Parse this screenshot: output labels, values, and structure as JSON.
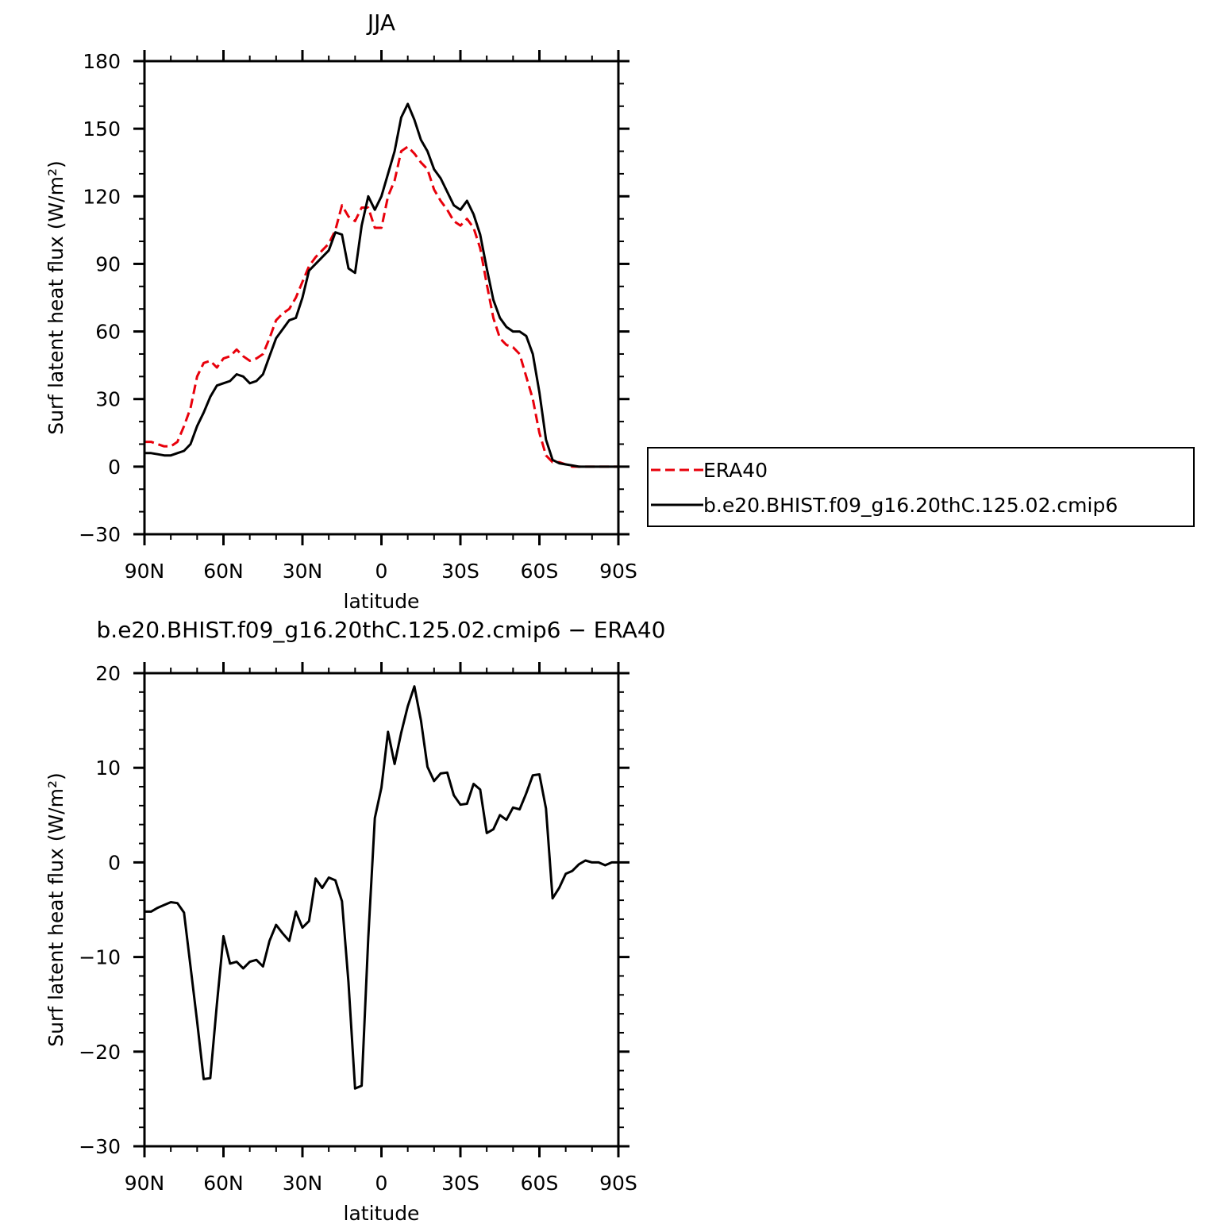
{
  "chart_data": [
    {
      "type": "line",
      "title": "JJA",
      "xlabel": "latitude",
      "ylabel": "Surf latent heat flux (W/m²)",
      "xlim": [
        -90,
        90
      ],
      "ylim": [
        -30,
        180
      ],
      "x_ticks": [
        -90,
        -60,
        -30,
        0,
        30,
        60,
        90
      ],
      "x_tick_labels": [
        "90N",
        "60N",
        "30N",
        "0",
        "30S",
        "60S",
        "90S"
      ],
      "y_ticks": [
        -30,
        0,
        30,
        60,
        90,
        120,
        150,
        180
      ],
      "y_tick_labels": [
        "−30",
        "0",
        "30",
        "60",
        "90",
        "120",
        "150",
        "180"
      ],
      "legend_position": "right",
      "series": [
        {
          "name": "ERA40",
          "color": "#e8000b",
          "dash": "dashed",
          "x": [
            -90,
            -87.5,
            -85,
            -82.5,
            -80,
            -77.5,
            -75,
            -72.5,
            -70,
            -67.5,
            -65,
            -62.5,
            -60,
            -57.5,
            -55,
            -52.5,
            -50,
            -47.5,
            -45,
            -42.5,
            -40,
            -37.5,
            -35,
            -32.5,
            -30,
            -27.5,
            -25,
            -22.5,
            -20,
            -17.5,
            -15,
            -12.5,
            -10,
            -7.5,
            -5,
            -2.5,
            0,
            2.5,
            5,
            7.5,
            10,
            12.5,
            15,
            17.5,
            20,
            22.5,
            25,
            27.5,
            30,
            32.5,
            35,
            37.5,
            40,
            42.5,
            45,
            47.5,
            50,
            52.5,
            55,
            57.5,
            60,
            62.5,
            65,
            67.5,
            70,
            72.5,
            75,
            77.5,
            80,
            82.5,
            85,
            87.5,
            90
          ],
          "values": [
            11,
            11,
            10,
            9,
            9,
            11,
            18,
            26,
            40,
            46,
            47,
            44,
            48,
            49,
            52,
            49,
            47,
            48,
            50,
            57,
            65,
            68,
            70,
            75,
            82,
            89,
            93,
            96,
            99,
            105,
            116,
            111,
            109,
            115,
            115,
            106,
            106,
            120,
            127,
            140,
            142,
            139,
            135,
            132,
            123,
            118,
            114,
            109,
            107,
            110,
            106,
            97,
            81,
            66,
            57,
            54,
            53,
            50,
            40,
            30,
            15,
            5,
            2,
            2,
            1,
            0,
            0,
            0,
            0,
            0,
            0,
            0,
            0
          ]
        },
        {
          "name": "b.e20.BHIST.f09_g16.20thC.125.02.cmip6",
          "color": "#000000",
          "dash": "solid",
          "x": [
            -90,
            -87.5,
            -85,
            -82.5,
            -80,
            -77.5,
            -75,
            -72.5,
            -70,
            -67.5,
            -65,
            -62.5,
            -60,
            -57.5,
            -55,
            -52.5,
            -50,
            -47.5,
            -45,
            -42.5,
            -40,
            -37.5,
            -35,
            -32.5,
            -30,
            -27.5,
            -25,
            -22.5,
            -20,
            -17.5,
            -15,
            -12.5,
            -10,
            -7.5,
            -5,
            -2.5,
            0,
            2.5,
            5,
            7.5,
            10,
            12.5,
            15,
            17.5,
            20,
            22.5,
            25,
            27.5,
            30,
            32.5,
            35,
            37.5,
            40,
            42.5,
            45,
            47.5,
            50,
            52.5,
            55,
            57.5,
            60,
            62.5,
            65,
            67.5,
            70,
            72.5,
            75,
            77.5,
            80,
            82.5,
            85,
            87.5,
            90
          ],
          "values": [
            6,
            6,
            5.5,
            5,
            5,
            6,
            7,
            10,
            18,
            24,
            31,
            36,
            37,
            38,
            41,
            40,
            37,
            38,
            41,
            49,
            57,
            61,
            65,
            66,
            75,
            87,
            90,
            93,
            96,
            104,
            103,
            88,
            86,
            107,
            120,
            114,
            120,
            130,
            140,
            155,
            161,
            154,
            145,
            140,
            132,
            128,
            122,
            116,
            114,
            118,
            112,
            103,
            88,
            74,
            66,
            62,
            60,
            60,
            58,
            50,
            33,
            12,
            3,
            1.5,
            1,
            0.5,
            0,
            0,
            0,
            0,
            0,
            0,
            0
          ]
        }
      ]
    },
    {
      "type": "line",
      "title": "b.e20.BHIST.f09_g16.20thC.125.02.cmip6 − ERA40",
      "xlabel": "latitude",
      "ylabel": "Surf latent heat flux (W/m²)",
      "xlim": [
        -90,
        90
      ],
      "ylim": [
        -30,
        20
      ],
      "x_ticks": [
        -90,
        -60,
        -30,
        0,
        30,
        60,
        90
      ],
      "x_tick_labels": [
        "90N",
        "60N",
        "30N",
        "0",
        "30S",
        "60S",
        "90S"
      ],
      "y_ticks": [
        -30,
        -20,
        -10,
        0,
        10,
        20
      ],
      "y_tick_labels": [
        "−30",
        "−20",
        "−10",
        "0",
        "10",
        "20"
      ],
      "series": [
        {
          "color": "#000000",
          "dash": "solid",
          "x": [
            -90,
            -87.5,
            -85,
            -82.5,
            -80,
            -77.5,
            -75,
            -72.5,
            -70,
            -67.5,
            -65,
            -62.5,
            -60,
            -57.5,
            -55,
            -52.5,
            -50,
            -47.5,
            -45,
            -42.5,
            -40,
            -37.5,
            -35,
            -32.5,
            -30,
            -27.5,
            -25,
            -22.5,
            -20,
            -17.5,
            -15,
            -12.5,
            -10,
            -7.5,
            -5,
            -2.5,
            0,
            2.5,
            5,
            7.5,
            10,
            12.5,
            15,
            17.5,
            20,
            22.5,
            25,
            27.5,
            30,
            32.5,
            35,
            37.5,
            40,
            42.5,
            45,
            47.5,
            50,
            52.5,
            55,
            57.5,
            60,
            62.5,
            65,
            67.5,
            70,
            72.5,
            75,
            77.5,
            80,
            82.5,
            85,
            87.5,
            90
          ],
          "values": [
            -5.2,
            -5.2,
            -4.8,
            -4.5,
            -4.2,
            -4.3,
            -5.3,
            -11,
            -16.8,
            -22.9,
            -22.8,
            -15,
            -7.8,
            -10.7,
            -10.5,
            -11.2,
            -10.5,
            -10.3,
            -11,
            -8.3,
            -6.6,
            -7.5,
            -8.3,
            -5.2,
            -6.9,
            -6.2,
            -1.7,
            -2.7,
            -1.6,
            -1.9,
            -4.1,
            -12.7,
            -23.9,
            -23.6,
            -8,
            4.7,
            7.9,
            13.8,
            10.4,
            13.7,
            16.5,
            18.6,
            15,
            10.1,
            8.6,
            9.4,
            9.5,
            7.1,
            6.1,
            6.2,
            8.3,
            7.7,
            3.1,
            3.5,
            5,
            4.5,
            5.8,
            5.6,
            7.3,
            9.2,
            9.3,
            5.7,
            -3.8,
            -2.7,
            -1.2,
            -0.9,
            -0.2,
            0.2,
            0,
            0,
            -0.3,
            0,
            0
          ]
        }
      ]
    }
  ]
}
